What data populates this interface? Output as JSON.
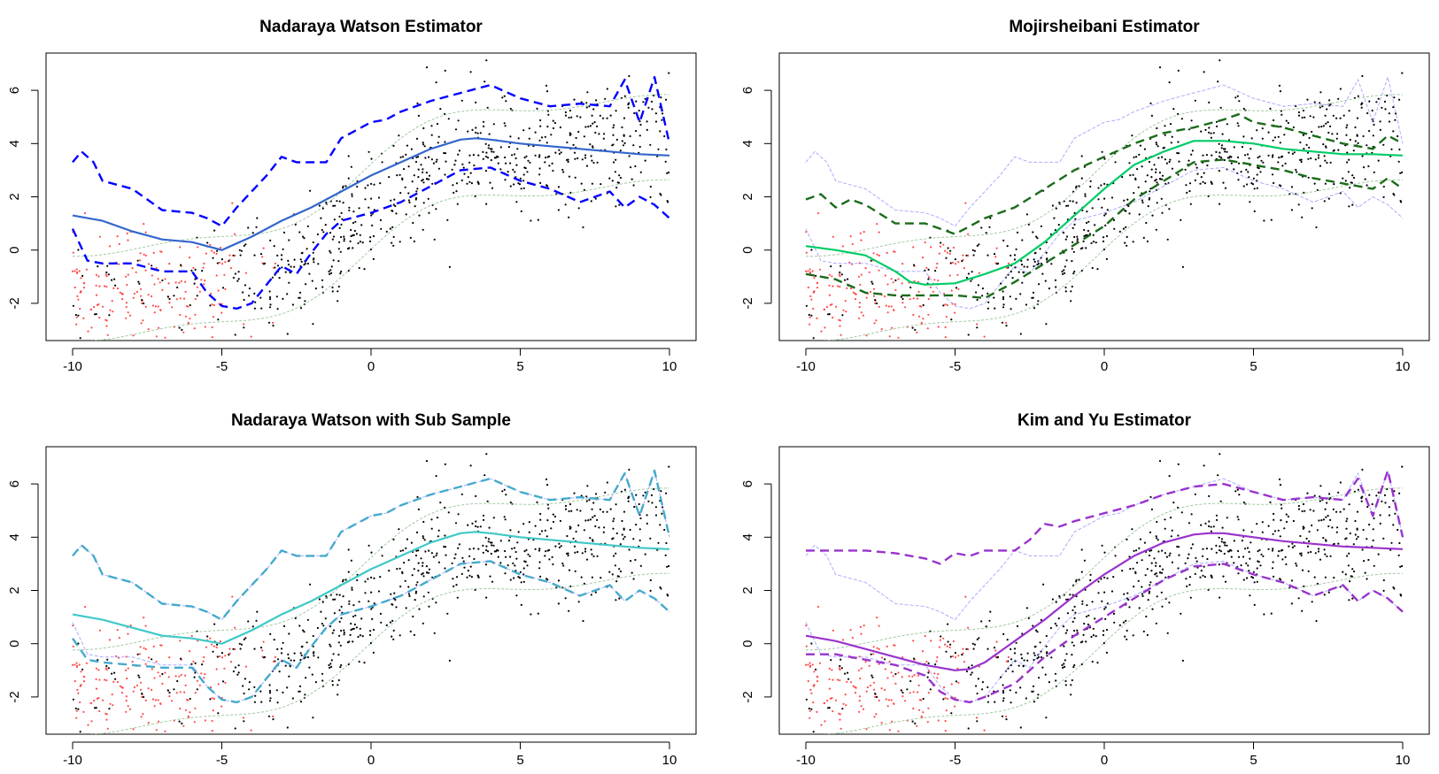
{
  "figure": {
    "layout": "2x2 grid of regression estimator panels"
  },
  "chart_data": [
    {
      "type": "scatter",
      "title": "Nadaraya Watson Estimator",
      "xlim": [
        -10,
        10
      ],
      "ylim": [
        -3,
        7
      ],
      "xticks": [
        -10,
        -5,
        0,
        5,
        10
      ],
      "yticks": [
        -2,
        0,
        2,
        4,
        6
      ],
      "xtick_labels": [
        "-10",
        "-5",
        "0",
        "5",
        "10"
      ],
      "ytick_labels": [
        "-2",
        "0",
        "2",
        "4",
        "6"
      ],
      "grid": false,
      "series": [
        {
          "role": "estimate",
          "style": "solid",
          "color": "#3366cc",
          "x": [
            -10,
            -9,
            -8,
            -7,
            -6,
            -5,
            -4,
            -3,
            -2,
            -1,
            0,
            1,
            2,
            3,
            3.5,
            4,
            5,
            6,
            7,
            8,
            9,
            10
          ],
          "y": [
            1.3,
            1.1,
            0.7,
            0.4,
            0.3,
            0.0,
            0.5,
            1.1,
            1.6,
            2.2,
            2.8,
            3.3,
            3.8,
            4.15,
            4.2,
            4.15,
            4.0,
            3.9,
            3.8,
            3.7,
            3.6,
            3.55
          ]
        },
        {
          "role": "upper-band",
          "style": "dashed",
          "color": "#0000ff",
          "x": [
            -10,
            -9.7,
            -9.3,
            -9,
            -8,
            -7.5,
            -7,
            -6,
            -5.5,
            -5,
            -4.5,
            -4,
            -3.5,
            -3,
            -2.5,
            -2,
            -1.5,
            -1,
            0,
            0.5,
            1,
            2,
            3,
            4,
            5,
            6,
            7,
            8,
            8.5,
            9,
            9.5,
            10
          ],
          "y": [
            3.3,
            3.7,
            3.3,
            2.6,
            2.3,
            1.9,
            1.5,
            1.4,
            1.2,
            0.9,
            1.6,
            2.2,
            2.8,
            3.5,
            3.3,
            3.3,
            3.3,
            4.2,
            4.8,
            4.9,
            5.2,
            5.6,
            5.9,
            6.2,
            5.7,
            5.4,
            5.5,
            5.4,
            6.4,
            4.8,
            6.5,
            4.0
          ]
        },
        {
          "role": "lower-band",
          "style": "dashed",
          "color": "#0000ff",
          "x": [
            -10,
            -9.5,
            -9,
            -8,
            -7,
            -6,
            -5.5,
            -5,
            -4.5,
            -4,
            -3.5,
            -3,
            -2.5,
            -2,
            -1.5,
            -1,
            0,
            1,
            2,
            3,
            4,
            5,
            6,
            7,
            8,
            8.5,
            9,
            9.5,
            10
          ],
          "y": [
            0.8,
            -0.4,
            -0.5,
            -0.5,
            -0.8,
            -0.8,
            -1.6,
            -2.1,
            -2.2,
            -2.0,
            -1.3,
            -0.6,
            -0.9,
            -0.1,
            0.6,
            1.1,
            1.4,
            1.8,
            2.4,
            3.0,
            3.1,
            2.6,
            2.3,
            1.8,
            2.2,
            1.6,
            2.0,
            1.7,
            1.2
          ]
        }
      ]
    },
    {
      "type": "scatter",
      "title": "Mojirsheibani Estimator",
      "xlim": [
        -10,
        10
      ],
      "ylim": [
        -3,
        7
      ],
      "xticks": [
        -10,
        -5,
        0,
        5,
        10
      ],
      "yticks": [
        -2,
        0,
        2,
        4,
        6
      ],
      "xtick_labels": [
        "-10",
        "-5",
        "0",
        "5",
        "10"
      ],
      "ytick_labels": [
        "-2",
        "0",
        "2",
        "4",
        "6"
      ],
      "grid": false,
      "series": [
        {
          "role": "estimate",
          "style": "solid",
          "color": "#00cc66",
          "x": [
            -10,
            -9,
            -8,
            -7,
            -6.5,
            -6,
            -5,
            -4,
            -3,
            -2,
            -1,
            0,
            1,
            2,
            3,
            4,
            5,
            6,
            7,
            8,
            9,
            10
          ],
          "y": [
            0.15,
            0.0,
            -0.2,
            -0.8,
            -1.2,
            -1.3,
            -1.25,
            -0.9,
            -0.5,
            0.3,
            1.3,
            2.3,
            3.2,
            3.7,
            4.1,
            4.1,
            4.0,
            3.8,
            3.7,
            3.6,
            3.6,
            3.55
          ]
        },
        {
          "role": "upper-band",
          "style": "dashed",
          "color": "#1a6b1a",
          "x": [
            -10,
            -9.5,
            -9,
            -8.5,
            -8,
            -7,
            -6,
            -5,
            -4,
            -3,
            -2,
            -1,
            0,
            1,
            2,
            3,
            4,
            4.5,
            5,
            6,
            7,
            8,
            9,
            9.5,
            10
          ],
          "y": [
            1.9,
            2.1,
            1.6,
            1.9,
            1.7,
            1.0,
            1.0,
            0.6,
            1.2,
            1.6,
            2.3,
            3.0,
            3.5,
            4.0,
            4.4,
            4.6,
            4.9,
            5.1,
            4.8,
            4.6,
            4.3,
            4.0,
            3.8,
            4.3,
            4.0
          ]
        },
        {
          "role": "lower-band",
          "style": "dashed",
          "color": "#1a6b1a",
          "x": [
            -10,
            -9,
            -8,
            -7,
            -6,
            -5,
            -4,
            -3,
            -2,
            -1,
            0,
            1,
            2,
            3,
            4,
            5,
            6,
            7,
            8,
            9,
            9.5,
            10
          ],
          "y": [
            -0.9,
            -1.1,
            -1.6,
            -1.7,
            -1.7,
            -1.7,
            -1.8,
            -1.2,
            -0.5,
            0.2,
            0.9,
            1.9,
            2.6,
            3.3,
            3.4,
            3.2,
            3.0,
            2.7,
            2.5,
            2.3,
            2.7,
            2.3
          ]
        }
      ]
    },
    {
      "type": "scatter",
      "title": "Nadaraya Watson with Sub Sample",
      "xlim": [
        -10,
        10
      ],
      "ylim": [
        -3,
        7
      ],
      "xticks": [
        -10,
        -5,
        0,
        5,
        10
      ],
      "yticks": [
        -2,
        0,
        2,
        4,
        6
      ],
      "xtick_labels": [
        "-10",
        "-5",
        "0",
        "5",
        "10"
      ],
      "ytick_labels": [
        "-2",
        "0",
        "2",
        "4",
        "6"
      ],
      "grid": false,
      "series": [
        {
          "role": "estimate",
          "style": "solid",
          "color": "#40c8c8",
          "x": [
            -10,
            -9,
            -8,
            -7,
            -6,
            -5,
            -4,
            -3,
            -2,
            -1,
            0,
            1,
            2,
            3,
            3.5,
            4,
            5,
            6,
            7,
            8,
            9,
            10
          ],
          "y": [
            1.1,
            0.9,
            0.6,
            0.3,
            0.2,
            0.0,
            0.5,
            1.1,
            1.6,
            2.2,
            2.8,
            3.3,
            3.8,
            4.15,
            4.2,
            4.15,
            4.0,
            3.9,
            3.8,
            3.7,
            3.6,
            3.55
          ]
        },
        {
          "role": "upper-band",
          "style": "dashed",
          "color": "#44aacc",
          "x": [
            -10,
            -9.7,
            -9.3,
            -9,
            -8,
            -7.5,
            -7,
            -6,
            -5.5,
            -5,
            -4.5,
            -4,
            -3.5,
            -3,
            -2.5,
            -2,
            -1.5,
            -1,
            0,
            0.5,
            1,
            2,
            3,
            4,
            5,
            6,
            7,
            8,
            8.5,
            9,
            9.5,
            10
          ],
          "y": [
            3.3,
            3.7,
            3.3,
            2.6,
            2.3,
            1.9,
            1.5,
            1.4,
            1.2,
            0.9,
            1.6,
            2.2,
            2.8,
            3.5,
            3.3,
            3.3,
            3.3,
            4.2,
            4.8,
            4.9,
            5.2,
            5.6,
            5.9,
            6.2,
            5.7,
            5.4,
            5.5,
            5.4,
            6.4,
            4.8,
            6.5,
            4.0
          ]
        },
        {
          "role": "lower-band",
          "style": "dashed",
          "color": "#44aacc",
          "x": [
            -10,
            -9.5,
            -9,
            -8,
            -7,
            -6,
            -5.5,
            -5,
            -4.5,
            -4,
            -3.5,
            -3,
            -2.5,
            -2,
            -1.5,
            -1,
            0,
            1,
            2,
            3,
            4,
            5,
            6,
            7,
            8,
            8.5,
            9,
            9.5,
            10
          ],
          "y": [
            0.2,
            -0.6,
            -0.7,
            -0.8,
            -0.9,
            -0.9,
            -1.6,
            -2.1,
            -2.2,
            -2.0,
            -1.3,
            -0.6,
            -0.9,
            -0.1,
            0.6,
            1.1,
            1.4,
            1.8,
            2.4,
            3.0,
            3.1,
            2.6,
            2.3,
            1.8,
            2.2,
            1.6,
            2.0,
            1.7,
            1.2
          ]
        }
      ]
    },
    {
      "type": "scatter",
      "title": "Kim and Yu Estimator",
      "xlim": [
        -10,
        10
      ],
      "ylim": [
        -3,
        7
      ],
      "xticks": [
        -10,
        -5,
        0,
        5,
        10
      ],
      "yticks": [
        -2,
        0,
        2,
        4,
        6
      ],
      "xtick_labels": [
        "-10",
        "-5",
        "0",
        "5",
        "10"
      ],
      "ytick_labels": [
        "-2",
        "0",
        "2",
        "4",
        "6"
      ],
      "grid": false,
      "series": [
        {
          "role": "estimate",
          "style": "solid",
          "color": "#9933cc",
          "x": [
            -10,
            -9,
            -8,
            -7,
            -6,
            -5,
            -4.5,
            -4,
            -3,
            -2,
            -1,
            0,
            1,
            2,
            3,
            3.5,
            4,
            5,
            6,
            7,
            8,
            9,
            10
          ],
          "y": [
            0.3,
            0.1,
            -0.2,
            -0.5,
            -0.8,
            -1.0,
            -0.95,
            -0.7,
            0.1,
            0.9,
            1.8,
            2.6,
            3.3,
            3.8,
            4.1,
            4.15,
            4.15,
            4.0,
            3.85,
            3.75,
            3.65,
            3.6,
            3.55
          ]
        },
        {
          "role": "upper-band",
          "style": "dashed",
          "color": "#9933cc",
          "x": [
            -10,
            -9,
            -8,
            -7,
            -6,
            -5.5,
            -5,
            -4.5,
            -4,
            -3,
            -2.5,
            -2,
            -1.5,
            -1,
            0,
            1,
            2,
            3,
            4,
            5,
            6,
            7,
            8,
            8.5,
            9,
            9.5,
            10
          ],
          "y": [
            3.5,
            3.5,
            3.5,
            3.4,
            3.2,
            3.0,
            3.4,
            3.3,
            3.5,
            3.5,
            3.9,
            4.5,
            4.4,
            4.6,
            4.9,
            5.2,
            5.6,
            5.9,
            6.0,
            5.7,
            5.4,
            5.5,
            5.4,
            6.2,
            4.8,
            6.5,
            4.0
          ]
        },
        {
          "role": "lower-band",
          "style": "dashed",
          "color": "#9933cc",
          "x": [
            -10,
            -9,
            -8,
            -7,
            -6,
            -5.5,
            -5,
            -4.5,
            -4,
            -3,
            -2,
            -1,
            0,
            1,
            2,
            3,
            4,
            5,
            6,
            7,
            8,
            8.5,
            9,
            9.5,
            10
          ],
          "y": [
            -0.4,
            -0.4,
            -0.6,
            -0.8,
            -1.2,
            -1.8,
            -2.1,
            -2.2,
            -2.0,
            -1.5,
            -0.5,
            0.3,
            1.0,
            1.7,
            2.4,
            2.9,
            3.0,
            2.6,
            2.3,
            1.8,
            2.2,
            1.6,
            2.0,
            1.7,
            1.2
          ]
        }
      ]
    }
  ],
  "background_layers": {
    "points_color_black": "#000000",
    "points_color_red": "#ff4d4d",
    "faint_envelope_color": "#8888ff",
    "faint_middle_color": "#88bb88"
  }
}
